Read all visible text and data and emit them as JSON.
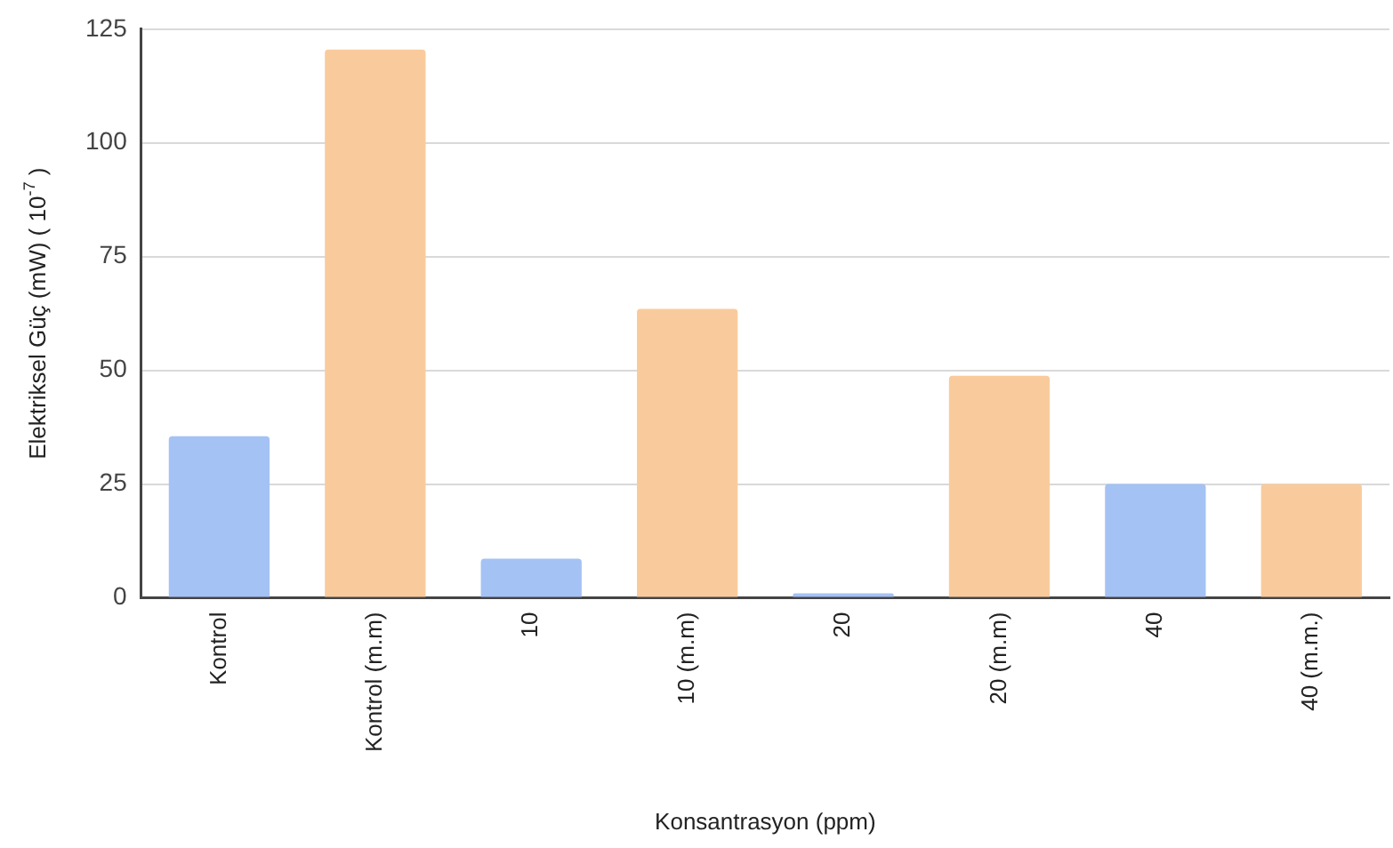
{
  "chart_data": {
    "type": "bar",
    "xlabel": "Konsantrasyon (ppm)",
    "ylabel": "Elektriksel Güç (mW) ( 10$^{-7}$ )",
    "categories": [
      "Kontrol",
      "Kontrol (m.m)",
      "10",
      "10 (m.m)",
      "20",
      "20 (m.m)",
      "40",
      "40 (m.m.)"
    ],
    "values": [
      35.5,
      120.5,
      8.6,
      63.5,
      1,
      48.8,
      25,
      25
    ],
    "colors": [
      "#a4c2f4",
      "#f9cb9c",
      "#a4c2f4",
      "#f9cb9c",
      "#a4c2f4",
      "#f9cb9c",
      "#a4c2f4",
      "#f9cb9c"
    ],
    "ylim": [
      0,
      125
    ],
    "yticks": [
      0,
      25,
      50,
      75,
      100,
      125
    ],
    "grid": "y",
    "legend": false
  }
}
